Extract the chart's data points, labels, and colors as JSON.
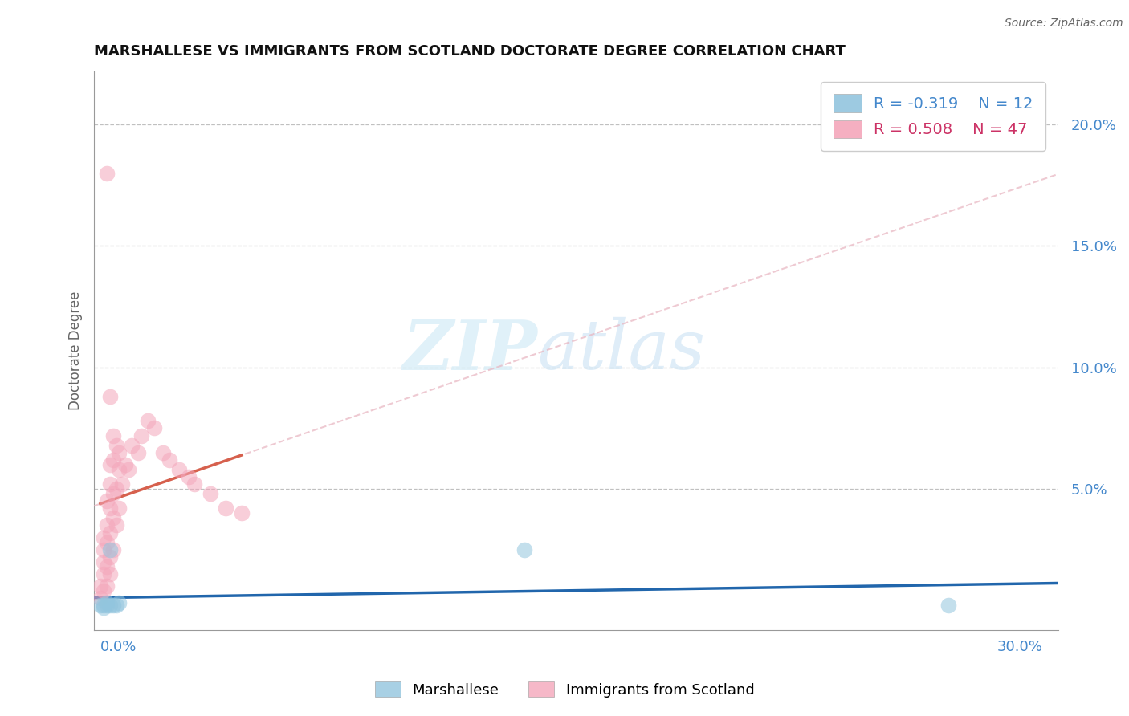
{
  "title": "MARSHALLESE VS IMMIGRANTS FROM SCOTLAND DOCTORATE DEGREE CORRELATION CHART",
  "source": "Source: ZipAtlas.com",
  "ylabel": "Doctorate Degree",
  "y_ticks": [
    0.0,
    0.05,
    0.1,
    0.15,
    0.2
  ],
  "y_tick_labels": [
    "",
    "5.0%",
    "10.0%",
    "15.0%",
    "20.0%"
  ],
  "x_range": [
    -0.002,
    0.305
  ],
  "y_range": [
    -0.008,
    0.222
  ],
  "legend_r1": "R = -0.319",
  "legend_n1": "N = 12",
  "legend_r2": "R = 0.508",
  "legend_n2": "N = 47",
  "color_blue": "#92c5de",
  "color_pink": "#f4a6bb",
  "color_trendline_blue": "#2166ac",
  "color_trendline_pink": "#d6604d",
  "color_dashed": "#e8b4c0",
  "marshallese_x": [
    0.0,
    0.001,
    0.001,
    0.002,
    0.002,
    0.003,
    0.003,
    0.004,
    0.005,
    0.006,
    0.135,
    0.27
  ],
  "marshallese_y": [
    0.002,
    0.002,
    0.001,
    0.003,
    0.002,
    0.002,
    0.025,
    0.002,
    0.002,
    0.003,
    0.025,
    0.002
  ],
  "scotland_x": [
    0.0,
    0.001,
    0.001,
    0.001,
    0.001,
    0.002,
    0.002,
    0.002,
    0.002,
    0.003,
    0.003,
    0.003,
    0.003,
    0.003,
    0.004,
    0.004,
    0.004,
    0.004,
    0.005,
    0.005,
    0.005,
    0.006,
    0.006,
    0.007,
    0.007,
    0.008,
    0.008,
    0.009,
    0.01,
    0.01,
    0.011,
    0.011,
    0.012,
    0.013,
    0.014,
    0.015,
    0.016,
    0.018,
    0.02,
    0.022,
    0.024,
    0.026,
    0.03,
    0.035,
    0.04,
    0.012,
    0.003
  ],
  "scotland_y": [
    0.01,
    0.005,
    0.008,
    0.02,
    0.03,
    0.01,
    0.015,
    0.025,
    0.035,
    0.015,
    0.02,
    0.03,
    0.04,
    0.05,
    0.025,
    0.035,
    0.045,
    0.06,
    0.035,
    0.045,
    0.055,
    0.04,
    0.06,
    0.05,
    0.065,
    0.055,
    0.07,
    0.06,
    0.055,
    0.075,
    0.06,
    0.08,
    0.07,
    0.065,
    0.075,
    0.08,
    0.07,
    0.065,
    0.06,
    0.055,
    0.06,
    0.05,
    0.045,
    0.04,
    0.035,
    0.03,
    0.18
  ]
}
